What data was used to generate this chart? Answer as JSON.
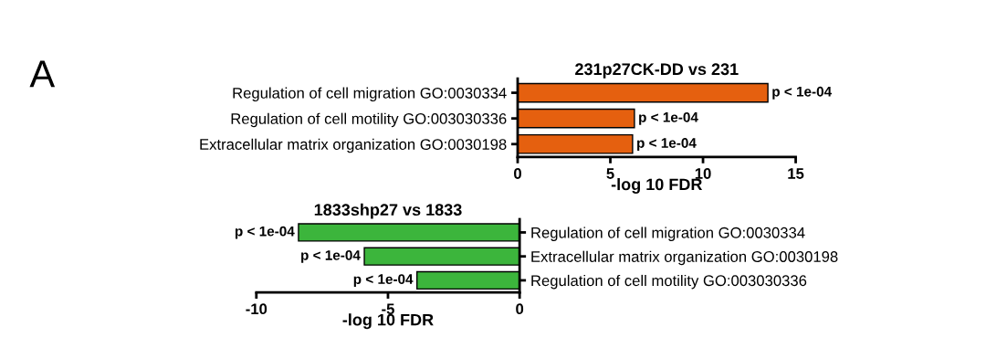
{
  "chart_data": [
    {
      "type": "bar",
      "orientation": "horizontal",
      "title": "231p27CK-DD vs 231",
      "xlabel": "-log 10 FDR",
      "annotations": [
        "A"
      ],
      "categories": [
        "Regulation of cell migration GO:0030334",
        "Regulation of cell motility GO:003030336",
        "Extracellular matrix organization GO:0030198"
      ],
      "values": [
        13.5,
        6.3,
        6.2
      ],
      "value_labels": [
        "p < 1e-04",
        "p < 1e-04",
        "p < 1e-04"
      ],
      "color": "#e5600f",
      "xlim": [
        0,
        15
      ],
      "xticks": [
        0,
        5,
        10,
        15
      ],
      "grid": false,
      "legend": false
    },
    {
      "type": "bar",
      "orientation": "horizontal",
      "title": "1833shp27 vs 1833",
      "xlabel": "-log 10 FDR",
      "categories": [
        "Regulation of cell migration GO:0030334",
        "Extracellular matrix organization GO:0030198",
        "Regulation of cell motility GO:003030336"
      ],
      "values": [
        -8.4,
        -5.9,
        -3.9
      ],
      "value_labels": [
        "p < 1e-04",
        "p < 1e-04",
        "p < 1e-04"
      ],
      "color": "#3cb53c",
      "xlim": [
        -10,
        0
      ],
      "xticks": [
        -10,
        -5,
        0
      ],
      "grid": false,
      "legend": false
    }
  ]
}
